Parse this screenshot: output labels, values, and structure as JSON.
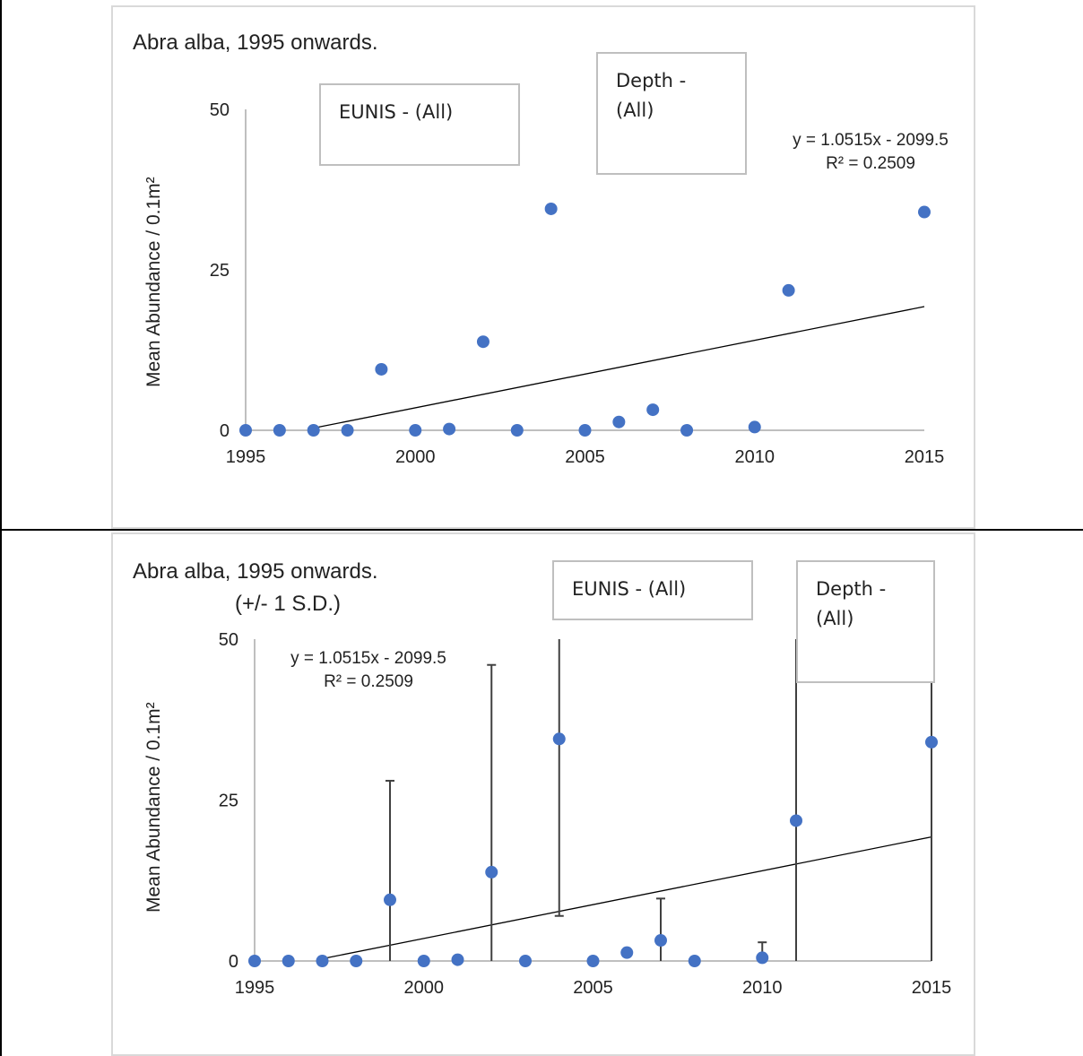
{
  "charts": [
    {
      "title": "Abra alba, 1995 onwards.",
      "subtitle": "",
      "filter_eunis": "EUNIS - (All)",
      "filter_depth_line1": "Depth -",
      "filter_depth_line2": "(All)",
      "ylabel": "Mean Abundance  / 0.1m²",
      "trend_equation": "y = 1.0515x - 2099.5",
      "trend_r2": "R² = 0.2509"
    },
    {
      "title": "Abra alba, 1995 onwards.",
      "subtitle": "(+/- 1 S.D.)",
      "filter_eunis": "EUNIS - (All)",
      "filter_depth_line1": "Depth -",
      "filter_depth_line2": "(All)",
      "ylabel": "Mean Abundance  / 0.1m²",
      "trend_equation": "y = 1.0515x - 2099.5",
      "trend_r2": "R² = 0.2509"
    }
  ],
  "colors": {
    "marker": "#4472c4",
    "axis": "#bfbfbf",
    "trend": "#000000",
    "error": "#404040"
  },
  "chart_data": [
    {
      "type": "scatter",
      "title": "Abra alba, 1995 onwards.",
      "ylabel": "Mean Abundance  / 0.1m²",
      "xlim": [
        1995,
        2015
      ],
      "ylim": [
        0,
        50
      ],
      "xticks": [
        1995,
        2000,
        2005,
        2010,
        2015
      ],
      "yticks": [
        0,
        25,
        50
      ],
      "x": [
        1995,
        1996,
        1997,
        1998,
        1999,
        2000,
        2001,
        2002,
        2003,
        2004,
        2005,
        2006,
        2007,
        2008,
        2010,
        2011,
        2015
      ],
      "y": [
        0,
        0,
        0,
        0,
        9.5,
        0,
        0.2,
        13.8,
        0,
        34.5,
        0,
        1.3,
        3.2,
        0,
        0.5,
        21.8,
        34
      ],
      "trendline": {
        "type": "linear",
        "slope": 1.0515,
        "intercept": -2099.5,
        "x_range": [
          1997,
          2015
        ]
      },
      "grid": false,
      "legend": "none"
    },
    {
      "type": "scatter",
      "title": "Abra alba, 1995 onwards.",
      "subtitle": "(+/- 1 S.D.)",
      "ylabel": "Mean Abundance  / 0.1m²",
      "xlim": [
        1995,
        2015
      ],
      "ylim": [
        0,
        50
      ],
      "xticks": [
        1995,
        2000,
        2005,
        2010,
        2015
      ],
      "yticks": [
        0,
        25,
        50
      ],
      "x": [
        1995,
        1996,
        1997,
        1998,
        1999,
        2000,
        2001,
        2002,
        2003,
        2004,
        2005,
        2006,
        2007,
        2008,
        2010,
        2011,
        2015
      ],
      "y": [
        0,
        0,
        0,
        0,
        9.5,
        0,
        0.2,
        13.8,
        0,
        34.5,
        0,
        1.3,
        3.2,
        0,
        0.5,
        21.8,
        34
      ],
      "error_upper": [
        0,
        0,
        0,
        0,
        28,
        0,
        0,
        46,
        0,
        50,
        0,
        1.8,
        9.7,
        0,
        2.9,
        50,
        50
      ],
      "error_lower": [
        0,
        0,
        0,
        0,
        0,
        0,
        0,
        0,
        0,
        7,
        0,
        0.8,
        0,
        0,
        0,
        0,
        0
      ],
      "trendline": {
        "type": "linear",
        "slope": 1.0515,
        "intercept": -2099.5,
        "x_range": [
          1997,
          2015
        ]
      },
      "grid": false,
      "legend": "none"
    }
  ]
}
